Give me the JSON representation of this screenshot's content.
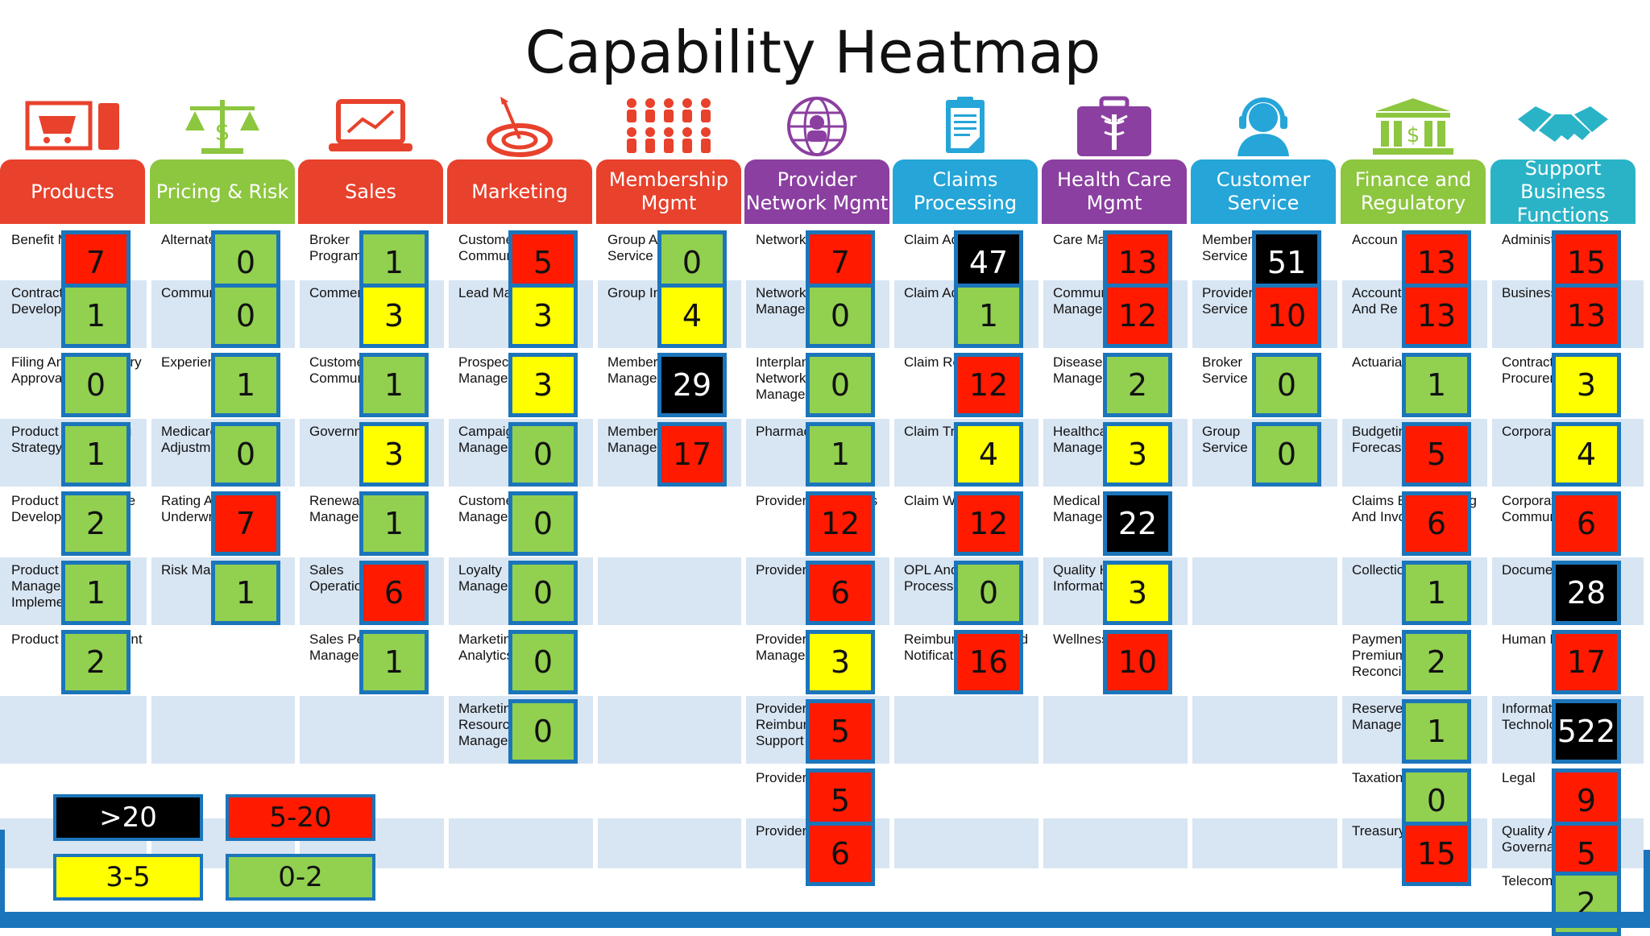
{
  "title": "Capability Heatmap",
  "colors": {
    "over20": "#000000",
    "range5to20": "#ff1a00",
    "range3to5": "#ffff00",
    "range0to2": "#92d050",
    "box_border": "#1b75bb"
  },
  "legend": [
    {
      "label": ">20",
      "level": "over20"
    },
    {
      "label": "5-20",
      "level": "range5to20"
    },
    {
      "label": "3-5",
      "level": "range3to5"
    },
    {
      "label": "0-2",
      "level": "range0to2"
    }
  ],
  "columns": [
    {
      "header": "Products",
      "color": "#e8412c",
      "icon": "shopping-cart-icon",
      "items": [
        {
          "label": "Benefit Mana",
          "value": 7
        },
        {
          "label": "Contract Development",
          "value": 1
        },
        {
          "label": "Filing And Regulatory\nApproval",
          "value": 0
        },
        {
          "label": "Product And Pricing\nStrategy",
          "value": 1
        },
        {
          "label": "Product And Service\nDevelopment",
          "value": 2
        },
        {
          "label": "Product Lifecycle\nManagement And\nImplement",
          "value": 1
        },
        {
          "label": "Product Management",
          "value": 2
        }
      ]
    },
    {
      "header": "Pricing & Risk",
      "color": "#8dc63f",
      "icon": "scales-icon",
      "items": [
        {
          "label": "Alternate",
          "value": 0
        },
        {
          "label": "Community Rating",
          "value": 0
        },
        {
          "label": "Experience Rating",
          "value": 1
        },
        {
          "label": "Medicare Risk\nAdjustmer",
          "value": 0
        },
        {
          "label": "Rating And\nUnderwriti",
          "value": 7
        },
        {
          "label": "Risk Management",
          "value": 1
        }
      ]
    },
    {
      "header": "Sales",
      "color": "#e8412c",
      "icon": "laptop-chart-icon",
      "items": [
        {
          "label": "Broker\nPrograms",
          "value": 1
        },
        {
          "label": "Commercial Sales",
          "value": 3
        },
        {
          "label": "Customer\nCommunica",
          "value": 1
        },
        {
          "label": "Government Sales",
          "value": 3
        },
        {
          "label": "Renewal Management",
          "value": 1
        },
        {
          "label": "Sales\nOperations",
          "value": 6
        },
        {
          "label": "Sales Performance\nManageme",
          "value": 1
        }
      ]
    },
    {
      "header": "Marketing",
      "color": "#e8412c",
      "icon": "target-icon",
      "items": [
        {
          "label": "Customer\nCommunic",
          "value": 5
        },
        {
          "label": "Lead Management",
          "value": 3
        },
        {
          "label": "Prospect Management",
          "value": 3
        },
        {
          "label": "Campaign\nManagem",
          "value": 0
        },
        {
          "label": "Customer Data\nManageme",
          "value": 0
        },
        {
          "label": "Loyalty\nManagem",
          "value": 0
        },
        {
          "label": "Marketing\nAnalytics",
          "value": 0
        },
        {
          "label": "Marketing\nResource\nManagem",
          "value": 0
        }
      ]
    },
    {
      "header": "Membership\nMgmt",
      "color": "#e8412c",
      "icon": "people-group-icon",
      "items": [
        {
          "label": "Group And\nService",
          "value": 0
        },
        {
          "label": "Group Installation",
          "value": 4
        },
        {
          "label": "Member Enrollment\nManageme",
          "value": 29
        },
        {
          "label": "Member Management",
          "value": 17
        }
      ]
    },
    {
      "header": "Provider\nNetwork Mgmt",
      "color": "#8b3fa0",
      "icon": "globe-network-icon",
      "items": [
        {
          "label": "Network D",
          "value": 7
        },
        {
          "label": "Network Management",
          "value": 0
        },
        {
          "label": "Interplan\nNetwork\nManagem",
          "value": 0
        },
        {
          "label": "Pharmacy Admin",
          "value": 1
        },
        {
          "label": "Provider Operations",
          "value": 12
        },
        {
          "label": "Provider Pricing",
          "value": 6
        },
        {
          "label": "Provider Quality\nManagem",
          "value": 3
        },
        {
          "label": "Provider\nReimburse\nSupport",
          "value": 5
        },
        {
          "label": "Provider R",
          "value": 5
        },
        {
          "label": "Provider C",
          "value": 6
        }
      ]
    },
    {
      "header": "Claims\nProcessing",
      "color": "#25a5d8",
      "icon": "clipboard-icon",
      "items": [
        {
          "label": "Claim Adju",
          "value": 47
        },
        {
          "label": "Claim Adjustment",
          "value": 1
        },
        {
          "label": "Claim Receipt",
          "value": 12
        },
        {
          "label": "Claim Triage",
          "value": 4
        },
        {
          "label": "Claim Workflow",
          "value": 12
        },
        {
          "label": "OPL And COB\nProcessing",
          "value": 0
        },
        {
          "label": "Reimbursement And\nNotification",
          "value": 16
        }
      ]
    },
    {
      "header": "Health Care\nMgmt",
      "color": "#8b3fa0",
      "icon": "medical-bag-icon",
      "items": [
        {
          "label": "Care Managen",
          "value": 13
        },
        {
          "label": "Community Health\nManagement",
          "value": 12
        },
        {
          "label": "Disease Management",
          "value": 2
        },
        {
          "label": "Healthcare Policy\nManagement",
          "value": 3
        },
        {
          "label": "Medical Utilization\nManagement",
          "value": 22
        },
        {
          "label": "Quality Health Informatics",
          "value": 3
        },
        {
          "label": "Wellness",
          "value": 10
        }
      ]
    },
    {
      "header": "Customer\nService",
      "color": "#25a5d8",
      "icon": "headset-agent-icon",
      "items": [
        {
          "label": "Member\nService",
          "value": 51
        },
        {
          "label": "Provider\nService",
          "value": 10
        },
        {
          "label": "Broker\nService",
          "value": 0
        },
        {
          "label": "Group\nService",
          "value": 0
        }
      ]
    },
    {
      "header": "Finance and\nRegulatory",
      "color": "#8dc63f",
      "icon": "bank-icon",
      "items": [
        {
          "label": "Accoun",
          "value": 13
        },
        {
          "label": "Accounts Payable\nAnd Re",
          "value": 13
        },
        {
          "label": "Actuarial",
          "value": 1
        },
        {
          "label": "Budgeting And\nForecas",
          "value": 5
        },
        {
          "label": "Claims Based Billing\nAnd Invo",
          "value": 6
        },
        {
          "label": "Collections",
          "value": 1
        },
        {
          "label": "Payments\nPremium\nReconcili",
          "value": 2
        },
        {
          "label": "Reserve\nManagen",
          "value": 1
        },
        {
          "label": "Taxation",
          "value": 0
        },
        {
          "label": "Treasury",
          "value": 15
        }
      ]
    },
    {
      "header": "Support\nBusiness\nFunctions",
      "color": "#2ab3c6",
      "icon": "handshake-icon",
      "items": [
        {
          "label": "Administrativ",
          "value": 15
        },
        {
          "label": "Business Analytics",
          "value": 13
        },
        {
          "label": "Contracts And\nProcurement",
          "value": 3
        },
        {
          "label": "Corporate Admin",
          "value": 4
        },
        {
          "label": "Corporate\nCommunicat",
          "value": 6
        },
        {
          "label": "Document Services",
          "value": 28
        },
        {
          "label": "Human Resources",
          "value": 17
        },
        {
          "label": "Information Technology",
          "value": 522
        },
        {
          "label": "Legal",
          "value": 9
        },
        {
          "label": "Quality And R\nGovernance",
          "value": 5
        },
        {
          "label": "Telecom",
          "value": 2
        }
      ]
    }
  ]
}
